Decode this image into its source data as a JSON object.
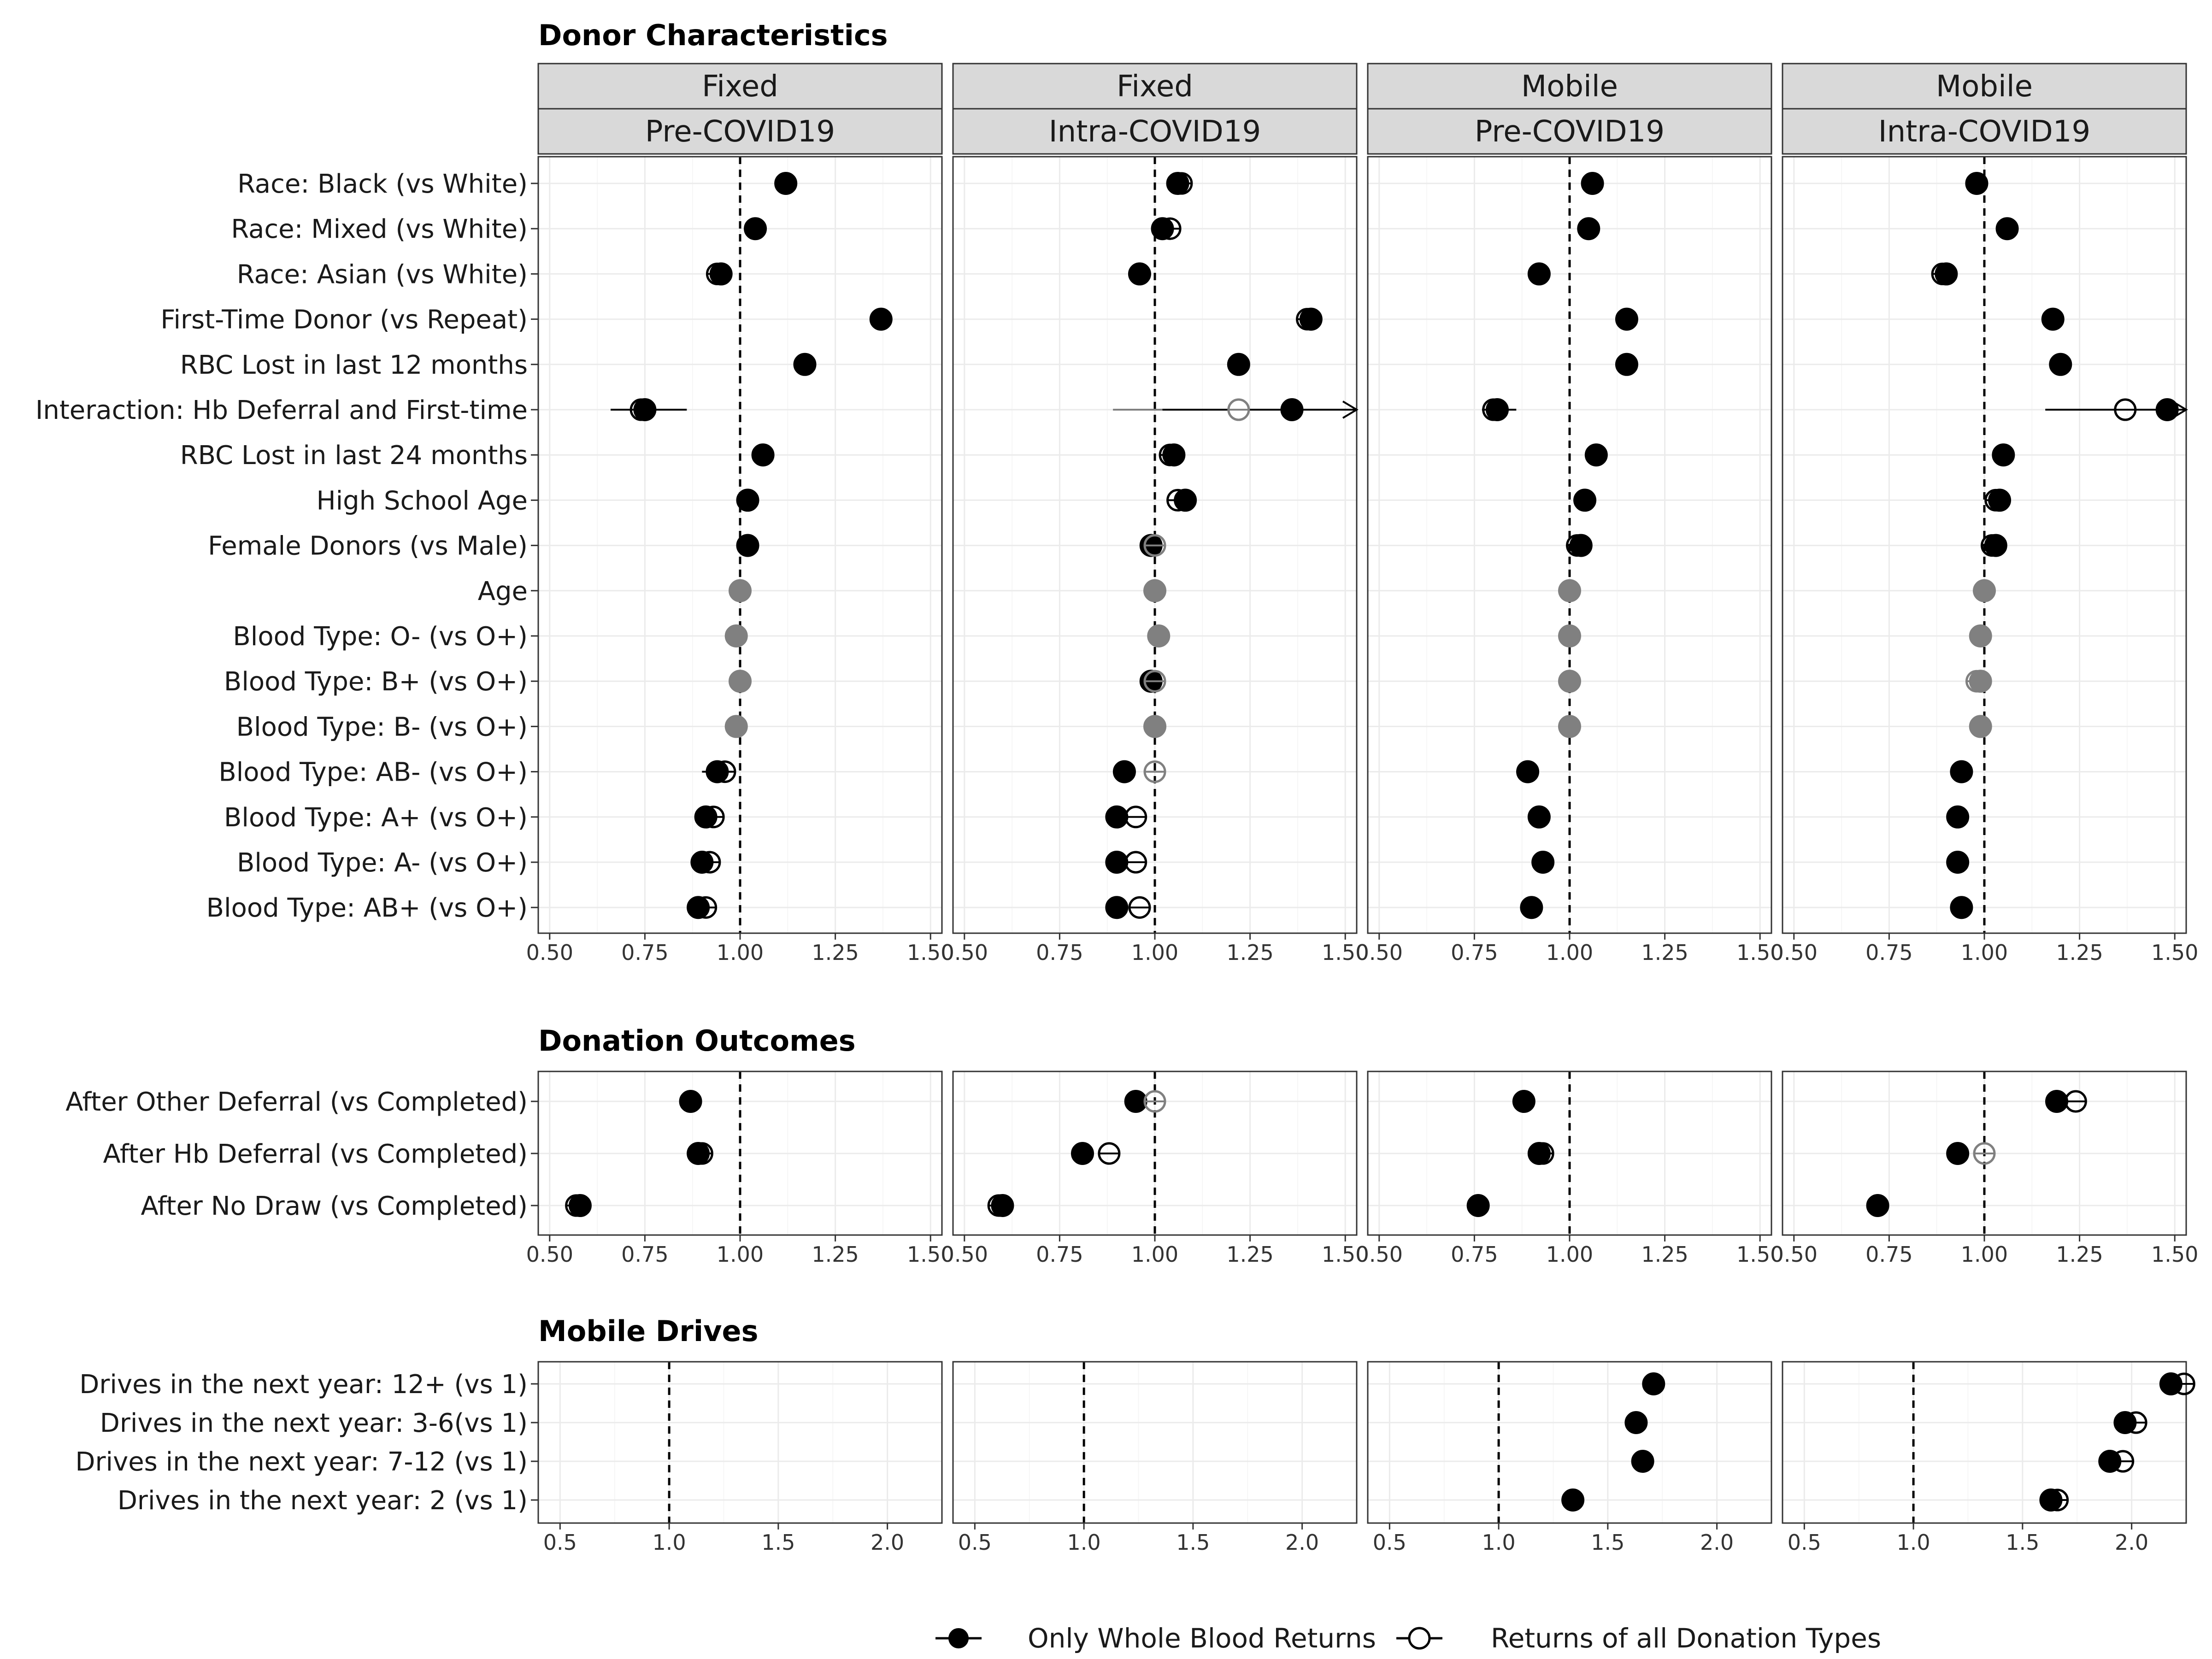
{
  "legend": {
    "whole_blood": "Only Whole Blood Returns",
    "all_types": "Returns of all Donation Types"
  },
  "panels": [
    {
      "site": "Fixed",
      "period": "Pre-COVID19"
    },
    {
      "site": "Fixed",
      "period": "Intra-COVID19"
    },
    {
      "site": "Mobile",
      "period": "Pre-COVID19"
    },
    {
      "site": "Mobile",
      "period": "Intra-COVID19"
    }
  ],
  "colors": {
    "significant": "#000000",
    "nonsignificant": "#808080",
    "strip": "#d9d9d9"
  },
  "chart_data": [
    {
      "type": "scatter",
      "title": "Donor Characteristics",
      "xlim": [
        0.47,
        1.53
      ],
      "xticks": [
        0.5,
        0.75,
        1.0,
        1.25,
        1.5
      ],
      "tick_labels": [
        "0.50",
        "0.75",
        "1.00",
        "1.25",
        "1.50"
      ],
      "reference": 1.0,
      "rows": [
        "Race: Black (vs White)",
        "Race: Mixed (vs White)",
        "Race: Asian (vs White)",
        "First-Time Donor (vs Repeat)",
        "RBC Lost in last 12 months",
        "Interaction: Hb Deferral and First-time",
        "RBC Lost in last 24 months",
        "High School Age",
        "Female Donors (vs Male)",
        "Age",
        "Blood Type: O- (vs O+)",
        "Blood Type: B+ (vs O+)",
        "Blood Type: B- (vs O+)",
        "Blood Type: AB- (vs O+)",
        "Blood Type: A+ (vs O+)",
        "Blood Type: A- (vs O+)",
        "Blood Type: AB+ (vs O+)"
      ],
      "panels": [
        {
          "whole": [
            1.12,
            1.04,
            0.95,
            1.37,
            1.17,
            0.75,
            1.06,
            1.02,
            1.02,
            1.0,
            0.99,
            1.0,
            0.99,
            0.94,
            0.91,
            0.9,
            0.89
          ],
          "all": [
            1.12,
            1.04,
            0.94,
            1.37,
            1.17,
            0.74,
            1.06,
            1.02,
            1.02,
            1.0,
            0.99,
            1.0,
            0.99,
            0.96,
            0.93,
            0.92,
            0.91
          ],
          "grey": [
            9,
            10,
            11,
            12
          ],
          "ci": {
            "5": [
              0.66,
              0.86
            ],
            "13": [
              0.9,
              0.98
            ]
          }
        },
        {
          "whole": [
            1.06,
            1.02,
            0.96,
            1.41,
            1.22,
            1.36,
            1.05,
            1.08,
            0.99,
            1.0,
            1.01,
            0.99,
            1.0,
            0.92,
            0.9,
            0.9,
            0.9
          ],
          "all": [
            1.07,
            1.04,
            0.96,
            1.4,
            1.22,
            1.22,
            1.04,
            1.06,
            1.0,
            1.0,
            1.01,
            1.0,
            1.0,
            1.0,
            0.95,
            0.95,
            0.96
          ],
          "grey": [
            9,
            10,
            12
          ],
          "grey_all": [
            5,
            8,
            11,
            13
          ],
          "ci": {
            "5": [
              1.02,
              1.53
            ],
            "13": [
              0.89,
              0.95
            ]
          },
          "ci_all": {
            "5": [
              0.89,
              1.55
            ],
            "13": [
              0.98,
              1.02
            ]
          },
          "arrow_right": [
            5
          ]
        },
        {
          "whole": [
            1.06,
            1.05,
            0.92,
            1.15,
            1.15,
            0.81,
            1.07,
            1.04,
            1.03,
            1.0,
            1.0,
            1.0,
            1.0,
            0.89,
            0.92,
            0.93,
            0.9
          ],
          "all": [
            1.06,
            1.05,
            0.92,
            1.15,
            1.15,
            0.8,
            1.07,
            1.04,
            1.02,
            1.0,
            1.0,
            1.0,
            1.0,
            0.89,
            0.92,
            0.93,
            0.9
          ],
          "grey": [
            9,
            10,
            11,
            12
          ],
          "ci": {
            "5": [
              0.77,
              0.86
            ],
            "13": [
              0.86,
              0.92
            ]
          }
        },
        {
          "whole": [
            0.98,
            1.06,
            0.9,
            1.18,
            1.2,
            1.48,
            1.05,
            1.04,
            1.03,
            1.0,
            0.99,
            0.99,
            0.99,
            0.94,
            0.93,
            0.93,
            0.94
          ],
          "all": [
            0.98,
            1.06,
            0.89,
            1.18,
            1.2,
            1.37,
            1.05,
            1.03,
            1.02,
            1.0,
            0.99,
            0.98,
            0.99,
            0.94,
            0.93,
            0.93,
            0.94
          ],
          "grey": [
            9,
            10,
            11,
            12
          ],
          "ci": {
            "5": [
              1.16,
              1.53
            ],
            "13": [
              0.91,
              0.97
            ]
          },
          "arrow_right": [
            5
          ]
        }
      ]
    },
    {
      "type": "scatter",
      "title": "Donation Outcomes",
      "xlim": [
        0.47,
        1.53
      ],
      "xticks": [
        0.5,
        0.75,
        1.0,
        1.25,
        1.5
      ],
      "tick_labels": [
        "0.50",
        "0.75",
        "1.00",
        "1.25",
        "1.50"
      ],
      "reference": 1.0,
      "rows": [
        "After Other Deferral (vs Completed)",
        "After Hb Deferral (vs Completed)",
        "After No Draw (vs Completed)"
      ],
      "panels": [
        {
          "whole": [
            0.87,
            0.89,
            0.58
          ],
          "all": [
            0.87,
            0.9,
            0.57
          ],
          "grey": []
        },
        {
          "whole": [
            0.95,
            0.81,
            0.6
          ],
          "all": [
            1.0,
            0.88,
            0.59
          ],
          "grey": [],
          "grey_all": [
            0
          ]
        },
        {
          "whole": [
            0.88,
            0.92,
            0.76
          ],
          "all": [
            0.88,
            0.93,
            0.76
          ],
          "grey": []
        },
        {
          "whole": [
            1.19,
            0.93,
            0.72
          ],
          "all": [
            1.24,
            1.0,
            0.72
          ],
          "grey": [],
          "grey_all": [
            1
          ]
        }
      ]
    },
    {
      "type": "scatter",
      "title": "Mobile Drives",
      "xlim": [
        0.4,
        2.25
      ],
      "xticks": [
        0.5,
        1.0,
        1.5,
        2.0
      ],
      "tick_labels": [
        "0.5",
        "1.0",
        "1.5",
        "2.0"
      ],
      "reference": 1.0,
      "rows": [
        "Drives in the next year: 12+ (vs 1)",
        "Drives in the next year: 3-6(vs 1)",
        "Drives in the next year: 7-12 (vs 1)",
        "Drives in the next year: 2 (vs 1)"
      ],
      "panels": [
        {
          "whole": [],
          "all": [],
          "grey": []
        },
        {
          "whole": [],
          "all": [],
          "grey": []
        },
        {
          "whole": [
            1.71,
            1.63,
            1.66,
            1.34
          ],
          "all": [
            1.71,
            1.63,
            1.66,
            1.34
          ],
          "grey": []
        },
        {
          "whole": [
            2.18,
            1.97,
            1.9,
            1.63
          ],
          "all": [
            2.24,
            2.02,
            1.96,
            1.66
          ],
          "grey": []
        }
      ]
    }
  ]
}
